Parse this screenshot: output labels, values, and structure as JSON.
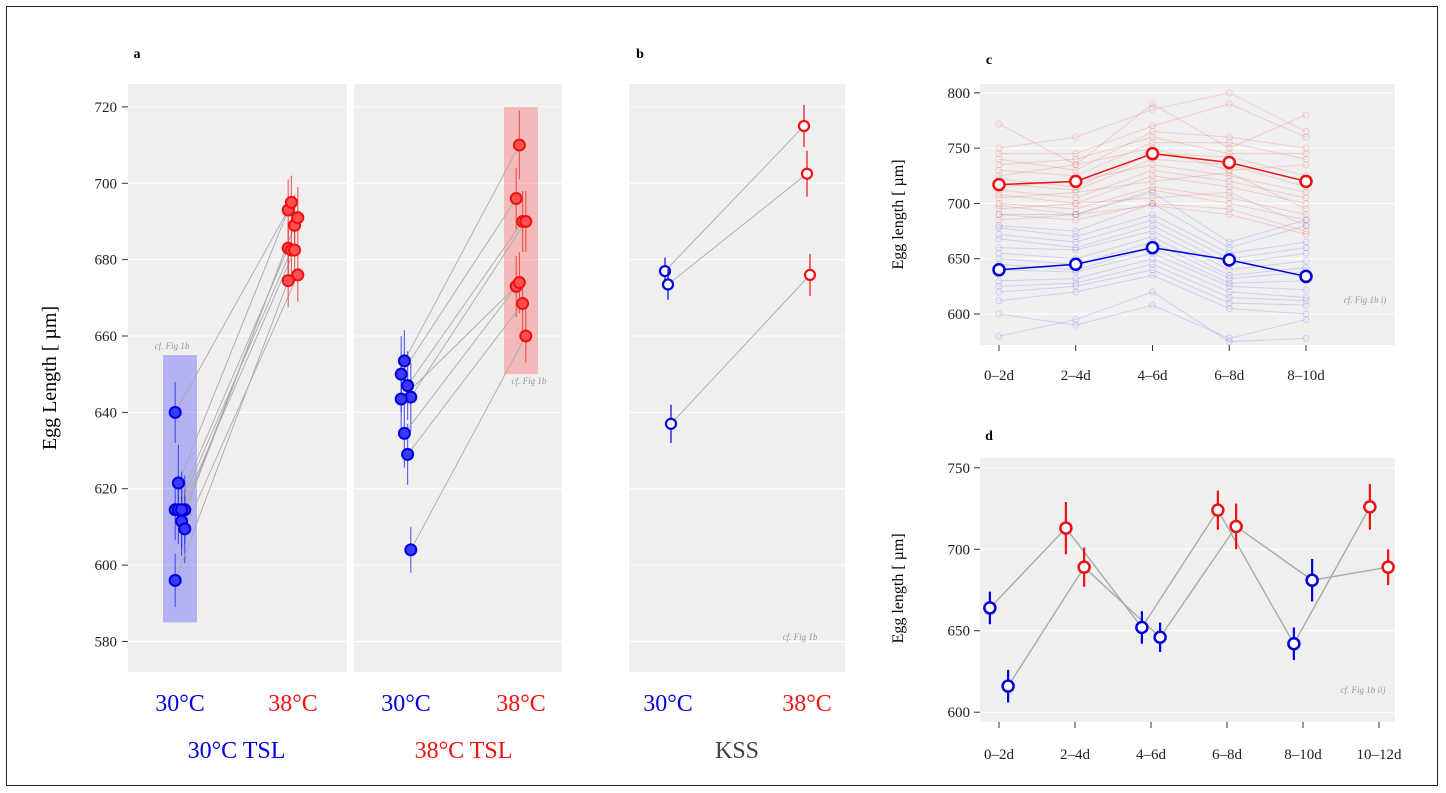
{
  "figure": {
    "panel_labels": [
      "a",
      "b",
      "c",
      "d"
    ],
    "colors": {
      "blue": "#0000dd",
      "red": "#ee1111",
      "grey_link": "#aaaaaa",
      "panel_bg": "#efefef"
    }
  },
  "chart_data": [
    {
      "id": "a",
      "type": "scatter",
      "ylabel": "Egg Length [ µm]",
      "ylim": [
        572,
        726
      ],
      "yticks": [
        580,
        600,
        620,
        640,
        660,
        680,
        700,
        720
      ],
      "tick_labels": [
        "30°C",
        "38°C"
      ],
      "groups": [
        {
          "name": "30°C TSL",
          "box": {
            "temp": "30°C",
            "ymin": 585,
            "ymax": 655,
            "label": "cf. Fig 1b"
          },
          "pairs": [
            {
              "y30": 640,
              "e30": 8,
              "y38": 693,
              "e38": 8
            },
            {
              "y30": 621.5,
              "e30": 10,
              "y38": 695,
              "e38": 7
            },
            {
              "y30": 611.5,
              "e30": 9,
              "y38": 689,
              "e38": 8
            },
            {
              "y30": 614.5,
              "e30": 9,
              "y38": 691,
              "e38": 8
            },
            {
              "y30": 614.5,
              "e30": 8,
              "y38": 683,
              "e38": 7
            },
            {
              "y30": 614.5,
              "e30": 9,
              "y38": 682.5,
              "e38": 8
            },
            {
              "y30": 614.5,
              "e30": 10,
              "y38": 682.5,
              "e38": 8
            },
            {
              "y30": 609.5,
              "e30": 9,
              "y38": 676,
              "e38": 7
            },
            {
              "y30": 596,
              "e30": 7,
              "y38": 674.5,
              "e38": 7
            }
          ]
        },
        {
          "name": "38°C TSL",
          "box": {
            "temp": "38°C",
            "ymin": 650,
            "ymax": 720,
            "label": "cf. Fig 1b"
          },
          "pairs": [
            {
              "y30": 650,
              "e30": 10,
              "y38": 696,
              "e38": 8
            },
            {
              "y30": 653.5,
              "e30": 8,
              "y38": 710,
              "e38": 9
            },
            {
              "y30": 647,
              "e30": 9,
              "y38": 690,
              "e38": 8
            },
            {
              "y30": 644,
              "e30": 9,
              "y38": 690,
              "e38": 8
            },
            {
              "y30": 643.5,
              "e30": 9,
              "y38": 673,
              "e38": 8
            },
            {
              "y30": 634.5,
              "e30": 9,
              "y38": 674,
              "e38": 8
            },
            {
              "y30": 629,
              "e30": 8,
              "y38": 668.5,
              "e38": 7
            },
            {
              "y30": 604,
              "e30": 6,
              "y38": 660,
              "e38": 7
            }
          ]
        }
      ]
    },
    {
      "id": "b",
      "type": "scatter",
      "ylim": [
        572,
        726
      ],
      "xlabel": "KSS",
      "tick_labels": [
        "30°C",
        "38°C"
      ],
      "note": "cf. Fig 1b",
      "pairs": [
        {
          "y30": 677,
          "e30": 3.5,
          "y38": 715,
          "e38": 5.5
        },
        {
          "y30": 673.5,
          "e30": 4,
          "y38": 702.5,
          "e38": 6
        },
        {
          "y30": 637,
          "e30": 5,
          "y38": 676,
          "e38": 5.5
        }
      ]
    },
    {
      "id": "c",
      "type": "line",
      "ylabel": "Egg length [ µm]",
      "categories": [
        "0–2d",
        "2–4d",
        "4–6d",
        "6–8d",
        "8–10d"
      ],
      "ylim": [
        572,
        808
      ],
      "yticks": [
        600,
        650,
        700,
        750,
        800
      ],
      "note": "cf. Fig 1b i)",
      "series": [
        {
          "color": "red",
          "values": [
            717,
            720,
            745,
            737,
            720
          ]
        },
        {
          "color": "blue",
          "values": [
            640,
            645,
            660,
            649,
            634
          ]
        }
      ],
      "background_series": {
        "red": [
          [
            772,
            735,
            790,
            750,
            780
          ],
          [
            750,
            760,
            785,
            800,
            765
          ],
          [
            745,
            745,
            770,
            790,
            760
          ],
          [
            740,
            730,
            765,
            760,
            750
          ],
          [
            735,
            740,
            760,
            745,
            745
          ],
          [
            730,
            725,
            755,
            755,
            740
          ],
          [
            725,
            735,
            750,
            730,
            735
          ],
          [
            722,
            715,
            745,
            742,
            725
          ],
          [
            718,
            712,
            740,
            735,
            715
          ],
          [
            715,
            720,
            735,
            725,
            710
          ],
          [
            712,
            705,
            730,
            720,
            705
          ],
          [
            708,
            700,
            725,
            715,
            700
          ],
          [
            705,
            710,
            720,
            728,
            695
          ],
          [
            700,
            695,
            715,
            705,
            690
          ],
          [
            698,
            690,
            712,
            700,
            685
          ],
          [
            695,
            700,
            705,
            710,
            680
          ],
          [
            690,
            685,
            700,
            695,
            675
          ],
          [
            685,
            690,
            698,
            690,
            672
          ]
        ],
        "blue": [
          [
            690,
            690,
            710,
            665,
            685
          ],
          [
            680,
            675,
            700,
            660,
            680
          ],
          [
            678,
            670,
            690,
            655,
            665
          ],
          [
            672,
            665,
            685,
            650,
            660
          ],
          [
            668,
            660,
            680,
            645,
            655
          ],
          [
            660,
            658,
            675,
            640,
            648
          ],
          [
            655,
            650,
            670,
            635,
            642
          ],
          [
            650,
            645,
            665,
            632,
            638
          ],
          [
            645,
            640,
            660,
            628,
            630
          ],
          [
            640,
            638,
            655,
            625,
            622
          ],
          [
            630,
            632,
            650,
            620,
            615
          ],
          [
            625,
            628,
            645,
            615,
            612
          ],
          [
            620,
            625,
            640,
            610,
            608
          ],
          [
            612,
            620,
            635,
            605,
            600
          ],
          [
            600,
            590,
            608,
            578,
            595
          ],
          [
            580,
            595,
            620,
            575,
            578
          ]
        ]
      }
    },
    {
      "id": "d",
      "type": "scatter",
      "ylabel": "Egg length [ µm]",
      "categories": [
        "0–2d",
        "2–4d",
        "4–6d",
        "6–8d",
        "8–10d",
        "10–12d"
      ],
      "ylim": [
        594,
        756
      ],
      "yticks": [
        600,
        650,
        700,
        750
      ],
      "note": "cf. Fig 1b ii)",
      "lines": [
        [
          664,
          713,
          652,
          724,
          642,
          726
        ],
        [
          616,
          689,
          646,
          714,
          681,
          689
        ]
      ],
      "points": [
        {
          "cat": 0,
          "dx": -0.12,
          "y": 664,
          "err": 10,
          "color": "blue"
        },
        {
          "cat": 0,
          "dx": 0.12,
          "y": 616,
          "err": 10,
          "color": "blue"
        },
        {
          "cat": 1,
          "dx": -0.12,
          "y": 713,
          "err": 16,
          "color": "red"
        },
        {
          "cat": 1,
          "dx": 0.12,
          "y": 689,
          "err": 12,
          "color": "red"
        },
        {
          "cat": 2,
          "dx": -0.12,
          "y": 652,
          "err": 10,
          "color": "blue"
        },
        {
          "cat": 2,
          "dx": 0.12,
          "y": 646,
          "err": 9,
          "color": "blue"
        },
        {
          "cat": 3,
          "dx": -0.12,
          "y": 724,
          "err": 12,
          "color": "red"
        },
        {
          "cat": 3,
          "dx": 0.12,
          "y": 714,
          "err": 14,
          "color": "red"
        },
        {
          "cat": 4,
          "dx": -0.12,
          "y": 642,
          "err": 10,
          "color": "blue"
        },
        {
          "cat": 4,
          "dx": 0.12,
          "y": 681,
          "err": 13,
          "color": "blue"
        },
        {
          "cat": 5,
          "dx": -0.12,
          "y": 726,
          "err": 14,
          "color": "red"
        },
        {
          "cat": 5,
          "dx": 0.12,
          "y": 689,
          "err": 11,
          "color": "red"
        }
      ]
    }
  ]
}
